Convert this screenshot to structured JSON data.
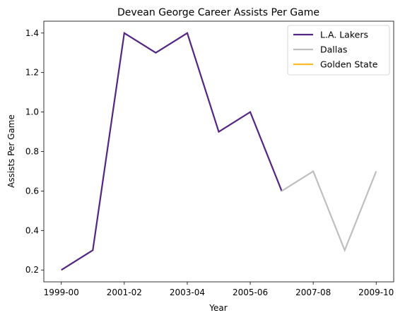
{
  "chart_data": {
    "type": "line",
    "title": "Devean George Career Assists Per Game",
    "xlabel": "Year",
    "ylabel": "Assists Per Game",
    "seasons": [
      "1999-00",
      "2000-01",
      "2001-02",
      "2002-03",
      "2003-04",
      "2004-05",
      "2005-06",
      "2006-07",
      "2007-08",
      "2008-09",
      "2009-10"
    ],
    "x_tick_labels": [
      "1999-00",
      "2001-02",
      "2003-04",
      "2005-06",
      "2007-08",
      "2009-10"
    ],
    "y_ticks": [
      0.2,
      0.4,
      0.6,
      0.8,
      1.0,
      1.2,
      1.4
    ],
    "y_tick_labels": [
      "0.2",
      "0.4",
      "0.6",
      "0.8",
      "1.0",
      "1.2",
      "1.4"
    ],
    "ylim": [
      0.14,
      1.46
    ],
    "grid": false,
    "legend_position": "top-right",
    "series": [
      {
        "name": "L.A. Lakers",
        "color": "#552583",
        "x": [
          "1999-00",
          "2000-01",
          "2001-02",
          "2002-03",
          "2003-04",
          "2004-05",
          "2005-06",
          "2006-07"
        ],
        "values": [
          0.2,
          0.3,
          1.4,
          1.3,
          1.4,
          0.9,
          1.0,
          0.6
        ]
      },
      {
        "name": "Dallas",
        "color": "#bfbfbf",
        "x": [
          "2006-07",
          "2007-08",
          "2008-09",
          "2009-10"
        ],
        "values": [
          0.6,
          0.7,
          0.3,
          0.7
        ]
      },
      {
        "name": "Golden State",
        "color": "#fdb927",
        "x": [],
        "values": []
      }
    ]
  }
}
